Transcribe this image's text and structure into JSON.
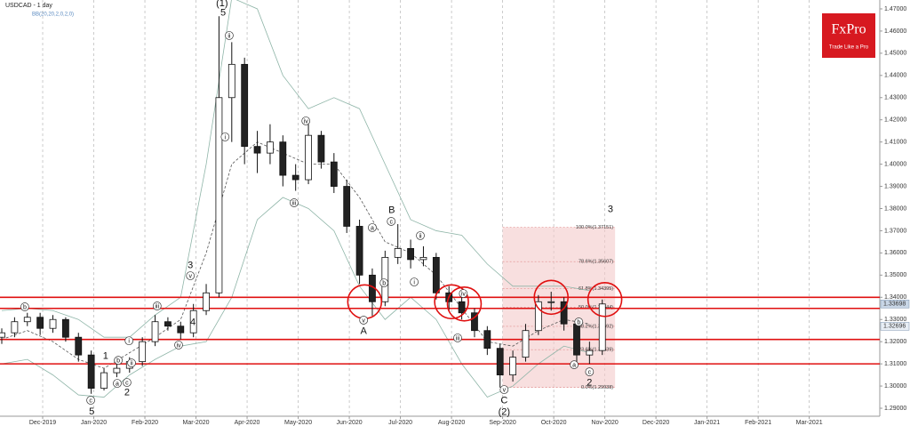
{
  "logo": {
    "name": "FxPro",
    "tagline": "Trade Like a Pro"
  },
  "chart_data": {
    "type": "candlestick",
    "title": "USDCAD - 1 day",
    "subtitle": "BB(20,20,2,0,2,0)",
    "xlim": [
      -0.835,
      16.38
    ],
    "ylim": [
      1.2864,
      1.474
    ],
    "grid": true,
    "xticks": [
      {
        "value": 0,
        "label": "Dec-2019"
      },
      {
        "value": 1,
        "label": "Jan-2020"
      },
      {
        "value": 2,
        "label": "Feb-2020"
      },
      {
        "value": 3,
        "label": "Mar-2020"
      },
      {
        "value": 4,
        "label": "Apr-2020"
      },
      {
        "value": 5,
        "label": "May-2020"
      },
      {
        "value": 6,
        "label": "Jun-2020"
      },
      {
        "value": 7,
        "label": "Jul-2020"
      },
      {
        "value": 8,
        "label": "Aug-2020"
      },
      {
        "value": 9,
        "label": "Sep-2020"
      },
      {
        "value": 10,
        "label": "Oct-2020"
      },
      {
        "value": 11,
        "label": "Nov-2020"
      },
      {
        "value": 12,
        "label": "Dec-2020"
      },
      {
        "value": 13,
        "label": "Jan-2021"
      },
      {
        "value": 14,
        "label": "Feb-2021"
      },
      {
        "value": 15,
        "label": "Mar-2021"
      }
    ],
    "yticks": [
      {
        "value": 1.29,
        "label": "1.29000"
      },
      {
        "value": 1.3,
        "label": "1.30000"
      },
      {
        "value": 1.31,
        "label": "1.31000"
      },
      {
        "value": 1.32,
        "label": "1.32000"
      },
      {
        "value": 1.33,
        "label": "1.33000"
      },
      {
        "value": 1.34,
        "label": "1.34000"
      },
      {
        "value": 1.35,
        "label": "1.35000"
      },
      {
        "value": 1.36,
        "label": "1.36000"
      },
      {
        "value": 1.37,
        "label": "1.37000"
      },
      {
        "value": 1.38,
        "label": "1.38000"
      },
      {
        "value": 1.39,
        "label": "1.39000"
      },
      {
        "value": 1.4,
        "label": "1.40000"
      },
      {
        "value": 1.41,
        "label": "1.41000"
      },
      {
        "value": 1.42,
        "label": "1.42000"
      },
      {
        "value": 1.43,
        "label": "1.43000"
      },
      {
        "value": 1.44,
        "label": "1.44000"
      },
      {
        "value": 1.45,
        "label": "1.45000"
      },
      {
        "value": 1.46,
        "label": "1.46000"
      },
      {
        "value": 1.47,
        "label": "1.47000"
      }
    ],
    "x": [
      -0.8,
      -0.55,
      -0.3,
      -0.05,
      0.2,
      0.45,
      0.7,
      0.95,
      1.2,
      1.45,
      1.7,
      1.95,
      2.2,
      2.45,
      2.7,
      2.95,
      3.2,
      3.45,
      3.7,
      3.95,
      4.2,
      4.45,
      4.7,
      4.95,
      5.2,
      5.45,
      5.7,
      5.95,
      6.2,
      6.45,
      6.7,
      6.95,
      7.2,
      7.45,
      7.7,
      7.95,
      8.2,
      8.45,
      8.7,
      8.95,
      9.2,
      9.45,
      9.7,
      9.95,
      10.2,
      10.45,
      10.7,
      10.95
    ],
    "ohlc": [
      [
        1.322,
        1.326,
        1.319,
        1.324
      ],
      [
        1.324,
        1.331,
        1.322,
        1.329
      ],
      [
        1.329,
        1.333,
        1.327,
        1.331
      ],
      [
        1.331,
        1.333,
        1.323,
        1.326
      ],
      [
        1.326,
        1.332,
        1.324,
        1.33
      ],
      [
        1.33,
        1.331,
        1.32,
        1.322
      ],
      [
        1.322,
        1.324,
        1.311,
        1.314
      ],
      [
        1.314,
        1.316,
        1.2965,
        1.299
      ],
      [
        1.299,
        1.308,
        1.298,
        1.306
      ],
      [
        1.306,
        1.311,
        1.304,
        1.308
      ],
      [
        1.308,
        1.313,
        1.306,
        1.311
      ],
      [
        1.311,
        1.322,
        1.309,
        1.32
      ],
      [
        1.32,
        1.332,
        1.318,
        1.329
      ],
      [
        1.329,
        1.331,
        1.325,
        1.327
      ],
      [
        1.327,
        1.329,
        1.321,
        1.324
      ],
      [
        1.324,
        1.337,
        1.322,
        1.334
      ],
      [
        1.334,
        1.346,
        1.332,
        1.342
      ],
      [
        1.342,
        1.4667,
        1.34,
        1.43
      ],
      [
        1.43,
        1.455,
        1.41,
        1.445
      ],
      [
        1.445,
        1.448,
        1.4,
        1.408
      ],
      [
        1.408,
        1.415,
        1.396,
        1.405
      ],
      [
        1.405,
        1.418,
        1.4,
        1.41
      ],
      [
        1.41,
        1.413,
        1.39,
        1.395
      ],
      [
        1.395,
        1.4,
        1.388,
        1.393
      ],
      [
        1.393,
        1.418,
        1.391,
        1.413
      ],
      [
        1.413,
        1.415,
        1.398,
        1.401
      ],
      [
        1.401,
        1.405,
        1.387,
        1.39
      ],
      [
        1.39,
        1.393,
        1.369,
        1.372
      ],
      [
        1.372,
        1.375,
        1.346,
        1.35
      ],
      [
        1.35,
        1.353,
        1.3316,
        1.338
      ],
      [
        1.338,
        1.361,
        1.336,
        1.358
      ],
      [
        1.358,
        1.373,
        1.355,
        1.362
      ],
      [
        1.362,
        1.366,
        1.353,
        1.357
      ],
      [
        1.357,
        1.363,
        1.354,
        1.358
      ],
      [
        1.358,
        1.36,
        1.339,
        1.342
      ],
      [
        1.342,
        1.345,
        1.334,
        1.338
      ],
      [
        1.338,
        1.342,
        1.33,
        1.333
      ],
      [
        1.333,
        1.335,
        1.322,
        1.325
      ],
      [
        1.325,
        1.327,
        1.314,
        1.317
      ],
      [
        1.317,
        1.319,
        1.2993,
        1.305
      ],
      [
        1.305,
        1.316,
        1.302,
        1.313
      ],
      [
        1.313,
        1.328,
        1.311,
        1.325
      ],
      [
        1.325,
        1.341,
        1.323,
        1.338
      ],
      [
        1.338,
        1.3425,
        1.334,
        1.338
      ],
      [
        1.338,
        1.34,
        1.325,
        1.328
      ],
      [
        1.328,
        1.33,
        1.311,
        1.314
      ],
      [
        1.314,
        1.32,
        1.31,
        1.316
      ],
      [
        1.316,
        1.339,
        1.314,
        1.337
      ]
    ],
    "bands": {
      "x": [
        -0.8,
        -0.3,
        0.2,
        0.7,
        1.2,
        1.7,
        2.2,
        2.7,
        3.2,
        3.7,
        4.2,
        4.7,
        5.2,
        5.7,
        6.2,
        6.7,
        7.2,
        7.7,
        8.2,
        8.7,
        9.2,
        9.7,
        10.2,
        10.7
      ],
      "upper": [
        1.334,
        1.335,
        1.334,
        1.33,
        1.322,
        1.322,
        1.332,
        1.34,
        1.4,
        1.475,
        1.47,
        1.44,
        1.425,
        1.43,
        1.425,
        1.4,
        1.375,
        1.37,
        1.368,
        1.355,
        1.345,
        1.345,
        1.345,
        1.343
      ],
      "middle": [
        1.321,
        1.325,
        1.32,
        1.312,
        1.308,
        1.315,
        1.322,
        1.33,
        1.36,
        1.4,
        1.41,
        1.405,
        1.4,
        1.4,
        1.385,
        1.365,
        1.36,
        1.35,
        1.335,
        1.32,
        1.318,
        1.325,
        1.33,
        1.328
      ],
      "lower": [
        1.31,
        1.312,
        1.305,
        1.296,
        1.295,
        1.305,
        1.312,
        1.318,
        1.32,
        1.34,
        1.375,
        1.385,
        1.38,
        1.37,
        1.345,
        1.33,
        1.34,
        1.33,
        1.31,
        1.295,
        1.3,
        1.31,
        1.318,
        1.315
      ]
    },
    "levels": [
      1.34,
      1.335,
      1.321,
      1.31
    ],
    "fib": {
      "levels": [
        {
          "value": 1.37151,
          "label": "100.0%(1.37151)"
        },
        {
          "value": 1.35607,
          "label": "78.6%(1.35607)"
        },
        {
          "value": 1.34395,
          "label": "61.8%(1.34395)"
        },
        {
          "value": 1.33544,
          "label": "50.0%(1.33544)"
        },
        {
          "value": 1.32692,
          "label": "38.2%(1.32692)"
        },
        {
          "value": 1.31639,
          "label": "23.6%(1.31639)"
        },
        {
          "value": 1.29938,
          "label": "0.0%(1.29938)"
        }
      ]
    },
    "price_labels": [
      1.33698,
      1.32696
    ],
    "annotations": [
      "b",
      "c",
      "5",
      "a",
      "b",
      "c",
      "1",
      "2",
      "i",
      "ii",
      "iii",
      "iv",
      "v",
      "3",
      "4",
      "(1)",
      "5",
      "ii",
      "i",
      "iv",
      "iii",
      "v",
      "A",
      "c",
      "B",
      "a",
      "b",
      "i",
      "ii",
      "iv",
      "iii",
      "C",
      "v",
      "(2)",
      "b",
      "a",
      "c",
      "2",
      "3"
    ]
  }
}
